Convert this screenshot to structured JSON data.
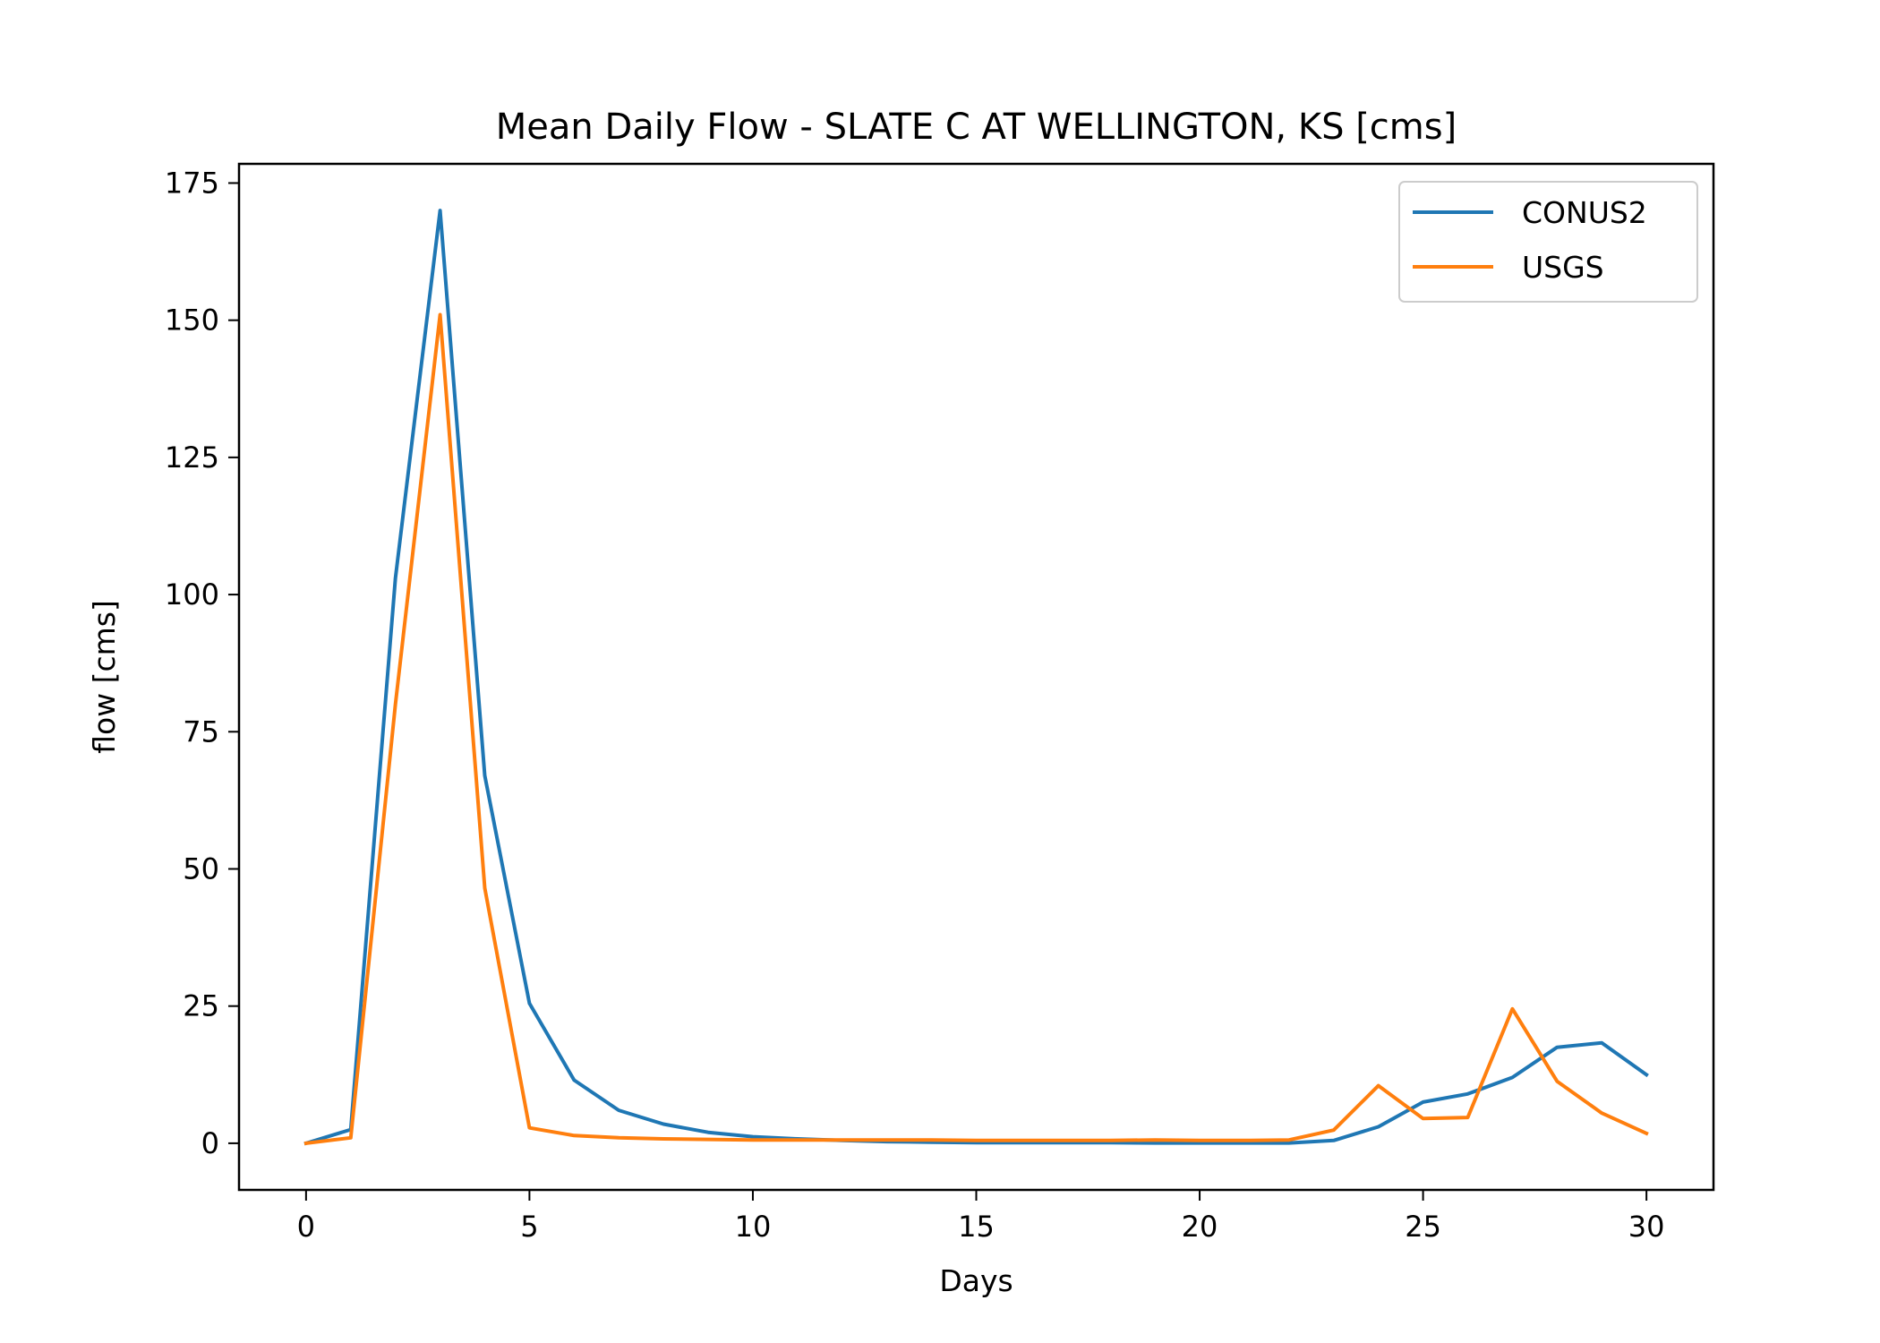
{
  "chart_data": {
    "type": "line",
    "title": "Mean Daily Flow - SLATE C AT WELLINGTON, KS [cms]",
    "xlabel": "Days",
    "ylabel": "flow [cms]",
    "xlim": [
      -1.5,
      31.5
    ],
    "ylim": [
      -8.5,
      178.5
    ],
    "xticks": [
      0,
      5,
      10,
      15,
      20,
      25,
      30
    ],
    "yticks": [
      0,
      25,
      50,
      75,
      100,
      125,
      150,
      175
    ],
    "grid": false,
    "legend": "top-right",
    "x": [
      0,
      1,
      2,
      3,
      4,
      5,
      6,
      7,
      8,
      9,
      10,
      11,
      12,
      13,
      14,
      15,
      16,
      17,
      18,
      19,
      20,
      21,
      22,
      23,
      24,
      25,
      26,
      27,
      28,
      29,
      30
    ],
    "series": [
      {
        "name": "CONUS2",
        "color": "#1f77b4",
        "values": [
          0,
          2.5,
          103,
          170,
          67,
          25.5,
          11.5,
          6,
          3.5,
          2,
          1.2,
          0.8,
          0.5,
          0.3,
          0.2,
          0.1,
          0.1,
          0.1,
          0.1,
          0.05,
          0.05,
          0.05,
          0.05,
          0.5,
          3,
          7.5,
          9,
          12,
          17.5,
          18.3,
          12.5
        ]
      },
      {
        "name": "USGS",
        "color": "#ff7f0e",
        "values": [
          0,
          1,
          80,
          151,
          46.5,
          2.8,
          1.4,
          1,
          0.8,
          0.7,
          0.6,
          0.6,
          0.6,
          0.6,
          0.6,
          0.5,
          0.5,
          0.5,
          0.5,
          0.6,
          0.5,
          0.5,
          0.6,
          2.4,
          10.5,
          4.5,
          4.7,
          24.5,
          11.3,
          5.5,
          1.8
        ]
      }
    ]
  }
}
